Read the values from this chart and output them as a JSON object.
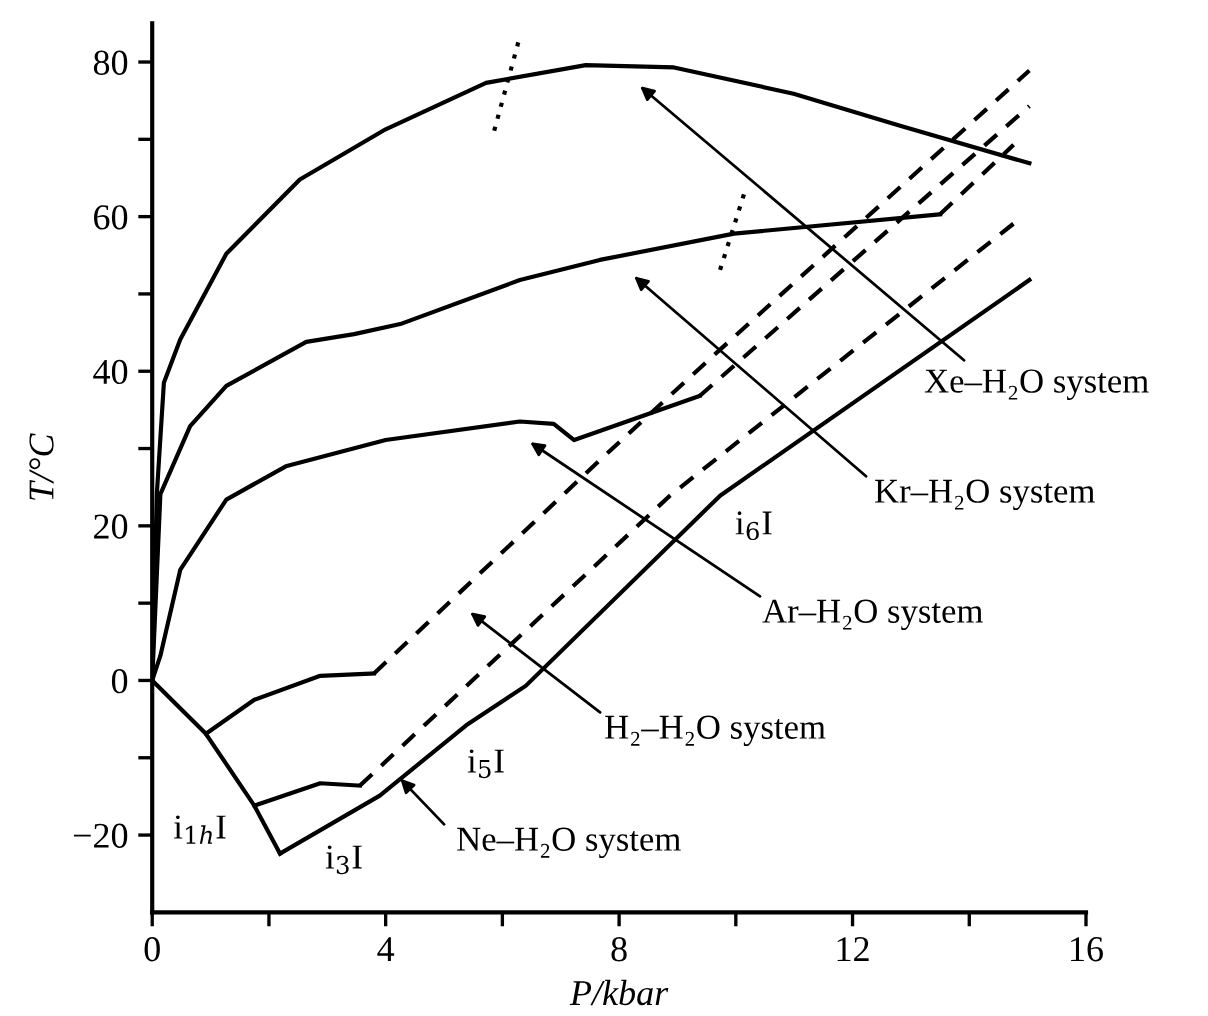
{
  "chart_data": {
    "type": "line",
    "xlabel": "P/kbar",
    "ylabel": "T/°C",
    "xlim": [
      0,
      16
    ],
    "ylim": [
      -30,
      85
    ],
    "xticks": [
      0,
      {
        "value": 2,
        "label": null
      },
      4,
      {
        "value": 6,
        "label": null
      },
      8,
      {
        "value": 10,
        "label": null
      },
      12,
      {
        "value": 14,
        "label": null
      },
      16
    ],
    "yticks": [
      {
        "value": -20,
        "label": "−20"
      },
      {
        "value": -10,
        "label": null
      },
      0,
      {
        "value": 10,
        "label": null
      },
      20,
      {
        "value": 30,
        "label": null
      },
      40,
      {
        "value": 50,
        "label": null
      },
      60,
      {
        "value": 70,
        "label": null
      },
      80
    ],
    "grid": false,
    "marker": "none",
    "series": [
      {
        "color": "#000000",
        "line_style": "solid",
        "x": [
          0,
          0.08,
          0.2,
          0.48,
          1.27,
          2.53,
          4.0,
          5.72,
          7.43,
          8.94,
          10.99,
          12.8,
          15.03
        ],
        "values": [
          0,
          24.2,
          38.5,
          44.1,
          55.2,
          64.8,
          71.3,
          77.3,
          79.6,
          79.3,
          75.9,
          71.8,
          66.9
        ]
      },
      {
        "color": "#000000",
        "line_style": "solid",
        "x": [
          0,
          0.14,
          0.65,
          1.27,
          2.64,
          3.46,
          4.25,
          6.3,
          7.67,
          9.97,
          13.5
        ],
        "values": [
          0,
          24.1,
          32.9,
          38.1,
          43.8,
          44.8,
          46.1,
          51.8,
          54.4,
          57.8,
          60.3
        ]
      },
      {
        "color": "#000000",
        "line_style": "solid",
        "x": [
          0,
          0.14,
          0.48,
          1.27,
          2.29,
          4.0,
          6.3,
          6.88,
          7.23,
          9.38
        ],
        "values": [
          0,
          3.2,
          14.3,
          23.4,
          27.7,
          31.1,
          33.5,
          33.2,
          31.1,
          36.8
        ]
      },
      {
        "color": "#000000",
        "line_style": "solid",
        "x": [
          0,
          0.92,
          1.75,
          2.19
        ],
        "values": [
          0,
          -6.9,
          -16.2,
          -22.4
        ]
      },
      {
        "color": "#000000",
        "line_style": "solid",
        "x": [
          2.19,
          3.9,
          5.38,
          6.4,
          9.73,
          15.03
        ],
        "values": [
          -22.4,
          -14.9,
          -5.8,
          -0.7,
          23.9,
          51.8
        ]
      },
      {
        "color": "#000000",
        "line_style": "solid",
        "x": [
          0.92,
          1.75,
          2.88,
          3.8
        ],
        "values": [
          -6.9,
          -2.5,
          0.6,
          0.9
        ]
      },
      {
        "color": "#000000",
        "line_style": "dashed",
        "x": [
          3.8,
          7.67,
          9.73,
          15.03
        ],
        "values": [
          0.9,
          28.5,
          42.8,
          78.9
        ]
      },
      {
        "color": "#000000",
        "line_style": "solid",
        "x": [
          1.75,
          2.88,
          3.56
        ],
        "values": [
          -16.2,
          -13.3,
          -13.6
        ]
      },
      {
        "color": "#000000",
        "line_style": "dashed",
        "x": [
          3.56,
          8.87,
          14.76
        ],
        "values": [
          -13.6,
          23.9,
          59.1
        ]
      },
      {
        "color": "#000000",
        "line_style": "dashed",
        "x": [
          9.38,
          15.03
        ],
        "values": [
          36.8,
          74.3
        ]
      },
      {
        "color": "#000000",
        "line_style": "dashed",
        "x": [
          13.5,
          14.76
        ],
        "values": [
          60.3,
          69.3
        ]
      },
      {
        "color": "#000000",
        "line_style": "dotted",
        "x": [
          5.86,
          6.3
        ],
        "values": [
          71.1,
          83.3
        ]
      },
      {
        "color": "#000000",
        "line_style": "dotted",
        "x": [
          9.73,
          10.14
        ],
        "values": [
          53.1,
          62.9
        ]
      }
    ],
    "annotations": [
      "Xe–H₂O system",
      "Kr–H₂O system",
      "Ar–H₂O system",
      "H₂–H₂O system",
      {
        "text": "Ne–H₂O system",
        "x": 4.25,
        "y": -12.7
      },
      "i$_{1h}$I",
      "i$_{3}$I",
      "i$_{5}$I",
      "i$_{6}$I"
    ]
  }
}
